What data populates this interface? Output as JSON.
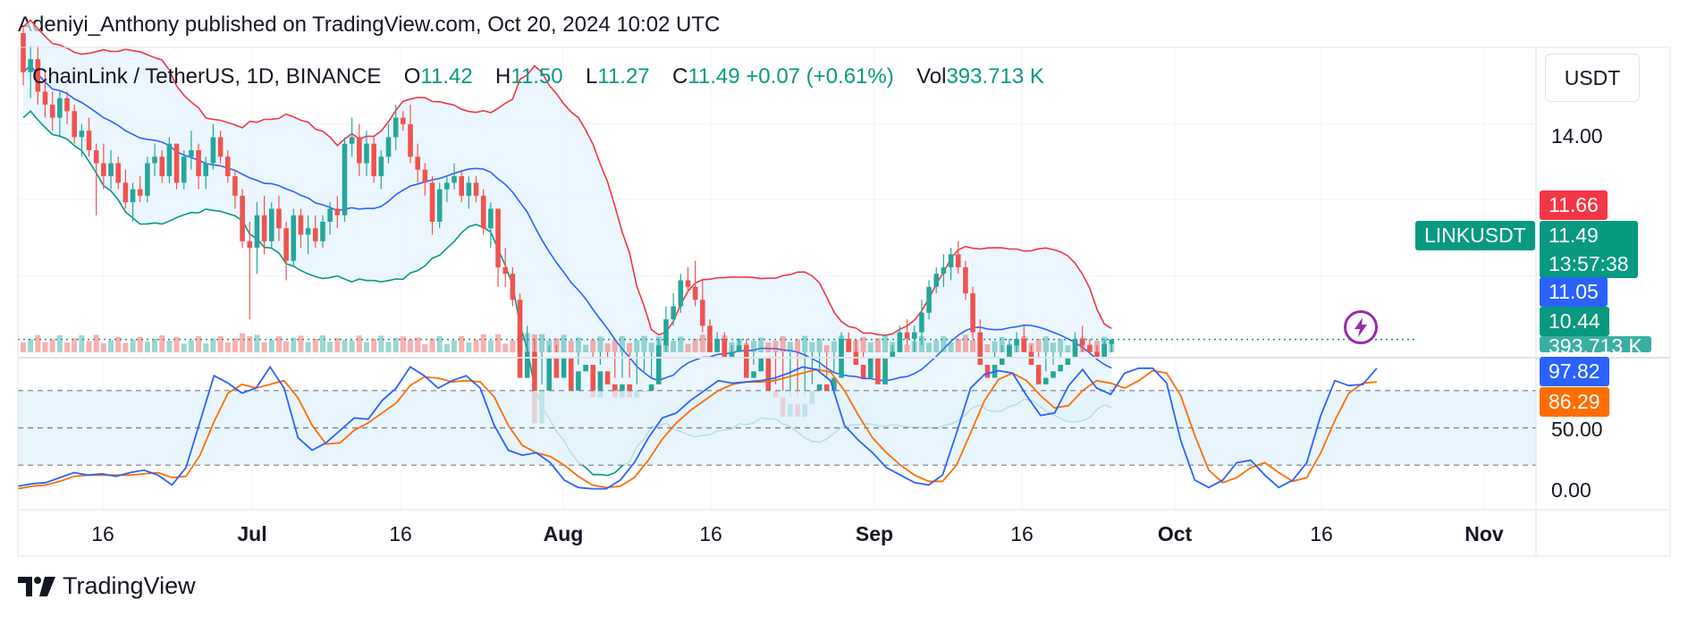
{
  "header": {
    "published": "Adeniyi_Anthony published on TradingView.com, Oct 20, 2024 10:02 UTC"
  },
  "legend": {
    "symbol": "ChainLink / TetherUS, 1D, BINANCE",
    "o_label": "O",
    "o_val": "11.42",
    "h_label": "H",
    "h_val": "11.50",
    "l_label": "L",
    "l_val": "11.27",
    "c_label": "C",
    "c_val": "11.49",
    "change": "+0.07 (+0.61%)",
    "vol_label": "Vol",
    "vol_val": "393.713 K"
  },
  "currency": "USDT",
  "price_axis": {
    "tick_14": "14.00"
  },
  "tags": {
    "upper_band": "11.66",
    "symbol_tag": "LINKUSDT",
    "last_price": "11.49",
    "countdown": "13:57:38",
    "basis": "11.05",
    "lower_band": "10.44",
    "volume": "393.713 K"
  },
  "osc_axis": {
    "k_val": "97.82",
    "d_val": "86.29",
    "tick_50": "50.00",
    "tick_0": "0.00"
  },
  "x_axis": [
    {
      "label": "16",
      "bold": false
    },
    {
      "label": "Jul",
      "bold": true
    },
    {
      "label": "16",
      "bold": false
    },
    {
      "label": "Aug",
      "bold": true
    },
    {
      "label": "16",
      "bold": false
    },
    {
      "label": "Sep",
      "bold": true
    },
    {
      "label": "16",
      "bold": false
    },
    {
      "label": "Oct",
      "bold": true
    },
    {
      "label": "16",
      "bold": false
    },
    {
      "label": "Nov",
      "bold": true
    }
  ],
  "footer": {
    "brand": "TradingView"
  },
  "colors": {
    "up": "#26a69a",
    "down": "#ef5350",
    "basis": "#2962ff",
    "upper": "#f23645",
    "lower": "#089981",
    "band_fill": "#e3f2fd",
    "stoch_k": "#2962ff",
    "stoch_d": "#ff6d00",
    "last_line": "#089981",
    "sym_tag": "#089981",
    "basis_tag": "#2962ff",
    "upper_tag": "#f23645",
    "osc_d_tag": "#ff6d00"
  },
  "chart_data": [
    {
      "type": "candlestick",
      "title": "ChainLink / TetherUS, 1D, BINANCE",
      "x_start": "2024-06-06",
      "x_end": "2024-10-20",
      "ylim": [
        9.3,
        16.0
      ],
      "overlays": [
        "Bollinger Bands (basis, upper, lower)"
      ],
      "candles": [
        [
          16.2,
          16.3,
          15.4,
          15.6
        ],
        [
          15.6,
          16.0,
          15.2,
          15.8
        ],
        [
          15.8,
          16.0,
          15.1,
          15.3
        ],
        [
          15.3,
          15.6,
          14.9,
          15.1
        ],
        [
          15.1,
          15.3,
          14.7,
          14.9
        ],
        [
          14.9,
          15.3,
          14.6,
          15.2
        ],
        [
          15.2,
          15.3,
          14.8,
          15.0
        ],
        [
          15.0,
          15.1,
          14.5,
          14.6
        ],
        [
          14.6,
          14.8,
          14.3,
          14.7
        ],
        [
          14.7,
          14.9,
          14.3,
          14.4
        ],
        [
          14.4,
          14.5,
          13.4,
          14.2
        ],
        [
          14.2,
          14.5,
          13.8,
          14.0
        ],
        [
          14.0,
          14.4,
          13.8,
          14.2
        ],
        [
          14.2,
          14.3,
          13.8,
          13.9
        ],
        [
          13.9,
          14.1,
          13.5,
          13.6
        ],
        [
          13.6,
          13.9,
          13.3,
          13.8
        ],
        [
          13.8,
          14.0,
          13.6,
          13.7
        ],
        [
          13.7,
          14.3,
          13.6,
          14.2
        ],
        [
          14.2,
          14.5,
          14.0,
          14.3
        ],
        [
          14.3,
          14.4,
          13.9,
          14.0
        ],
        [
          14.0,
          14.6,
          13.9,
          14.5
        ],
        [
          14.5,
          14.5,
          13.8,
          13.9
        ],
        [
          13.9,
          14.4,
          13.8,
          14.3
        ],
        [
          14.3,
          14.7,
          14.1,
          14.4
        ],
        [
          14.4,
          14.5,
          13.8,
          14.0
        ],
        [
          14.0,
          14.3,
          13.8,
          14.2
        ],
        [
          14.2,
          14.8,
          14.1,
          14.6
        ],
        [
          14.6,
          14.7,
          14.2,
          14.3
        ],
        [
          14.3,
          14.4,
          13.9,
          14.0
        ],
        [
          14.0,
          14.1,
          13.5,
          13.7
        ],
        [
          13.7,
          13.8,
          12.9,
          13.0
        ],
        [
          13.0,
          13.3,
          11.8,
          12.9
        ],
        [
          12.9,
          13.6,
          12.5,
          13.4
        ],
        [
          13.4,
          13.7,
          12.8,
          13.0
        ],
        [
          13.0,
          13.6,
          12.9,
          13.5
        ],
        [
          13.5,
          13.7,
          13.0,
          13.2
        ],
        [
          13.2,
          13.3,
          12.4,
          12.7
        ],
        [
          12.7,
          13.5,
          12.6,
          13.4
        ],
        [
          13.4,
          13.5,
          12.9,
          13.1
        ],
        [
          13.1,
          13.4,
          12.8,
          13.2
        ],
        [
          13.2,
          13.4,
          12.9,
          13.0
        ],
        [
          13.0,
          13.4,
          12.9,
          13.3
        ],
        [
          13.3,
          13.6,
          13.1,
          13.5
        ],
        [
          13.5,
          13.7,
          13.2,
          13.4
        ],
        [
          13.4,
          14.6,
          13.3,
          14.5
        ],
        [
          14.5,
          14.9,
          14.3,
          14.6
        ],
        [
          14.6,
          14.8,
          14.0,
          14.2
        ],
        [
          14.2,
          14.7,
          14.0,
          14.5
        ],
        [
          14.5,
          14.6,
          13.9,
          14.0
        ],
        [
          14.0,
          14.4,
          13.8,
          14.3
        ],
        [
          14.3,
          14.8,
          14.2,
          14.6
        ],
        [
          14.6,
          15.1,
          14.4,
          14.9
        ],
        [
          14.9,
          15.0,
          14.7,
          14.8
        ],
        [
          14.8,
          15.1,
          14.2,
          14.3
        ],
        [
          14.3,
          14.5,
          13.9,
          14.1
        ],
        [
          14.1,
          14.2,
          13.7,
          13.9
        ],
        [
          13.9,
          14.0,
          13.1,
          13.3
        ],
        [
          13.3,
          13.9,
          13.2,
          13.8
        ],
        [
          13.8,
          14.0,
          13.6,
          13.9
        ],
        [
          13.9,
          14.2,
          13.8,
          14.0
        ],
        [
          14.0,
          14.1,
          13.6,
          13.7
        ],
        [
          13.7,
          14.0,
          13.5,
          13.9
        ],
        [
          13.9,
          14.0,
          13.6,
          13.7
        ],
        [
          13.7,
          13.8,
          13.1,
          13.2
        ],
        [
          13.2,
          13.6,
          12.9,
          13.5
        ],
        [
          13.5,
          13.5,
          12.3,
          12.6
        ],
        [
          12.6,
          12.9,
          12.3,
          12.5
        ],
        [
          12.5,
          12.6,
          12.0,
          12.1
        ],
        [
          12.1,
          12.2,
          10.7,
          10.9
        ],
        [
          10.9,
          11.7,
          9.3,
          11.3
        ],
        [
          11.3,
          11.5,
          10.0,
          10.2
        ],
        [
          10.2,
          10.8,
          9.9,
          10.7
        ],
        [
          10.7,
          11.4,
          10.5,
          11.2
        ],
        [
          11.2,
          11.4,
          10.8,
          10.9
        ],
        [
          10.9,
          11.3,
          10.7,
          11.2
        ],
        [
          11.2,
          11.3,
          10.6,
          10.7
        ],
        [
          10.7,
          11.1,
          10.5,
          11.0
        ],
        [
          11.0,
          11.3,
          10.9,
          11.1
        ],
        [
          11.1,
          11.2,
          10.5,
          10.6
        ],
        [
          10.6,
          11.1,
          10.5,
          11.0
        ],
        [
          11.0,
          11.2,
          10.7,
          10.8
        ],
        [
          10.8,
          10.9,
          10.5,
          10.6
        ],
        [
          10.6,
          10.9,
          10.4,
          10.8
        ],
        [
          10.8,
          10.9,
          10.5,
          10.6
        ],
        [
          10.6,
          10.8,
          10.5,
          10.7
        ],
        [
          10.7,
          11.0,
          10.6,
          10.7
        ],
        [
          10.7,
          10.9,
          10.6,
          10.8
        ],
        [
          10.8,
          11.5,
          10.7,
          11.4
        ],
        [
          11.4,
          12.0,
          11.3,
          11.8
        ],
        [
          11.8,
          12.2,
          11.7,
          12.0
        ],
        [
          12.0,
          12.5,
          11.9,
          12.4
        ],
        [
          12.4,
          12.6,
          12.2,
          12.3
        ],
        [
          12.3,
          12.7,
          12.0,
          12.1
        ],
        [
          12.1,
          12.4,
          11.6,
          11.7
        ],
        [
          11.7,
          11.8,
          11.2,
          11.3
        ],
        [
          11.3,
          11.6,
          11.1,
          11.5
        ],
        [
          11.5,
          11.6,
          11.1,
          11.2
        ],
        [
          11.2,
          11.4,
          11.0,
          11.3
        ],
        [
          11.3,
          11.5,
          11.1,
          11.4
        ],
        [
          11.4,
          11.5,
          10.8,
          10.9
        ],
        [
          10.9,
          11.1,
          10.6,
          11.0
        ],
        [
          11.0,
          11.3,
          10.9,
          11.2
        ],
        [
          11.2,
          11.3,
          10.6,
          10.7
        ],
        [
          10.7,
          10.8,
          10.5,
          10.6
        ],
        [
          10.6,
          10.7,
          10.2,
          10.3
        ],
        [
          10.3,
          10.6,
          10.0,
          10.5
        ],
        [
          10.5,
          10.6,
          10.2,
          10.3
        ],
        [
          10.3,
          10.6,
          10.2,
          10.5
        ],
        [
          10.5,
          10.8,
          10.4,
          10.7
        ],
        [
          10.7,
          11.0,
          10.6,
          10.8
        ],
        [
          10.8,
          10.9,
          10.6,
          10.7
        ],
        [
          10.7,
          11.0,
          10.6,
          10.9
        ],
        [
          10.9,
          11.6,
          10.8,
          11.5
        ],
        [
          11.5,
          11.6,
          11.2,
          11.3
        ],
        [
          11.3,
          11.5,
          11.0,
          11.1
        ],
        [
          11.1,
          11.2,
          10.8,
          10.9
        ],
        [
          10.9,
          11.3,
          10.8,
          11.2
        ],
        [
          11.2,
          11.3,
          10.7,
          10.8
        ],
        [
          10.8,
          11.3,
          10.7,
          11.2
        ],
        [
          11.2,
          11.4,
          11.0,
          11.3
        ],
        [
          11.3,
          11.7,
          11.2,
          11.6
        ],
        [
          11.6,
          11.8,
          11.4,
          11.5
        ],
        [
          11.5,
          11.7,
          11.3,
          11.6
        ],
        [
          11.6,
          12.1,
          11.4,
          11.9
        ],
        [
          11.9,
          12.4,
          11.8,
          12.3
        ],
        [
          12.3,
          12.6,
          12.2,
          12.5
        ],
        [
          12.5,
          12.8,
          12.3,
          12.6
        ],
        [
          12.6,
          12.9,
          12.4,
          12.8
        ],
        [
          12.8,
          13.0,
          12.5,
          12.6
        ],
        [
          12.6,
          12.7,
          12.1,
          12.2
        ],
        [
          12.2,
          12.3,
          11.5,
          11.6
        ],
        [
          11.6,
          11.8,
          11.0,
          11.1
        ],
        [
          11.1,
          11.3,
          10.8,
          10.9
        ],
        [
          10.9,
          11.2,
          10.8,
          11.1
        ],
        [
          11.1,
          11.4,
          10.9,
          11.2
        ],
        [
          11.2,
          11.5,
          11.1,
          11.4
        ],
        [
          11.4,
          11.6,
          11.3,
          11.5
        ],
        [
          11.5,
          11.7,
          11.2,
          11.3
        ],
        [
          11.3,
          11.4,
          11.0,
          11.1
        ],
        [
          11.1,
          11.2,
          10.7,
          10.8
        ],
        [
          10.8,
          11.0,
          10.7,
          10.9
        ],
        [
          10.9,
          11.1,
          10.8,
          11.0
        ],
        [
          11.0,
          11.2,
          10.9,
          11.1
        ],
        [
          11.1,
          11.3,
          11.0,
          11.2
        ],
        [
          11.2,
          11.6,
          11.1,
          11.5
        ],
        [
          11.5,
          11.7,
          11.3,
          11.4
        ],
        [
          11.4,
          11.5,
          11.2,
          11.3
        ],
        [
          11.3,
          11.4,
          11.1,
          11.2
        ],
        [
          11.2,
          11.5,
          11.1,
          11.42
        ],
        [
          11.42,
          11.5,
          11.27,
          11.49
        ]
      ],
      "bands": {
        "upper_end": 11.66,
        "basis_end": 11.05,
        "lower_end": 10.44
      }
    },
    {
      "type": "line",
      "title": "Stochastic",
      "ylim": [
        0,
        100
      ],
      "levels": [
        80,
        50,
        20
      ],
      "series": [
        {
          "name": "K",
          "last": 97.82,
          "values": [
            3,
            5,
            6,
            10,
            14,
            12,
            13,
            11,
            14,
            16,
            12,
            4,
            18,
            55,
            92,
            86,
            78,
            82,
            99,
            82,
            42,
            32,
            38,
            48,
            58,
            57,
            72,
            82,
            99,
            92,
            82,
            88,
            92,
            82,
            52,
            32,
            28,
            30,
            22,
            8,
            2,
            1,
            1,
            8,
            22,
            42,
            58,
            62,
            72,
            80,
            88,
            86,
            87,
            88,
            90,
            94,
            99,
            97,
            88,
            52,
            40,
            30,
            18,
            12,
            6,
            4,
            12,
            46,
            82,
            93,
            96,
            94,
            76,
            60,
            62,
            84,
            97,
            82,
            77,
            94,
            98,
            98,
            86,
            40,
            8,
            2,
            8,
            22,
            24,
            12,
            2,
            8,
            22,
            60,
            88,
            84,
            85,
            98
          ]
        },
        {
          "name": "D",
          "last": 86.29,
          "values": [
            1,
            3,
            4,
            7,
            11,
            12,
            12,
            12,
            12,
            13,
            14,
            10,
            11,
            28,
            55,
            78,
            85,
            82,
            85,
            88,
            74,
            52,
            37,
            38,
            48,
            54,
            62,
            70,
            84,
            91,
            90,
            87,
            88,
            87,
            75,
            52,
            36,
            30,
            27,
            20,
            11,
            4,
            2,
            3,
            10,
            24,
            41,
            54,
            64,
            72,
            80,
            85,
            87,
            87,
            88,
            91,
            94,
            97,
            95,
            80,
            60,
            42,
            30,
            20,
            12,
            7,
            7,
            20,
            46,
            72,
            89,
            94,
            88,
            76,
            66,
            68,
            80,
            88,
            86,
            82,
            88,
            96,
            94,
            76,
            44,
            16,
            6,
            10,
            18,
            22,
            14,
            7,
            10,
            30,
            56,
            78,
            86,
            87
          ]
        }
      ]
    }
  ]
}
